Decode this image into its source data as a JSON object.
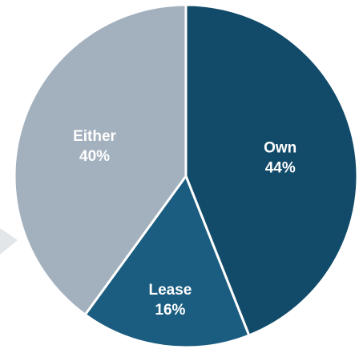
{
  "chart_data": {
    "type": "pie",
    "categories": [
      "Own",
      "Lease",
      "Either"
    ],
    "values": [
      44,
      16,
      40
    ],
    "value_labels": [
      "44%",
      "16%",
      "40%"
    ],
    "colors": [
      "#124b69",
      "#1a5d80",
      "#a3b1be"
    ]
  }
}
